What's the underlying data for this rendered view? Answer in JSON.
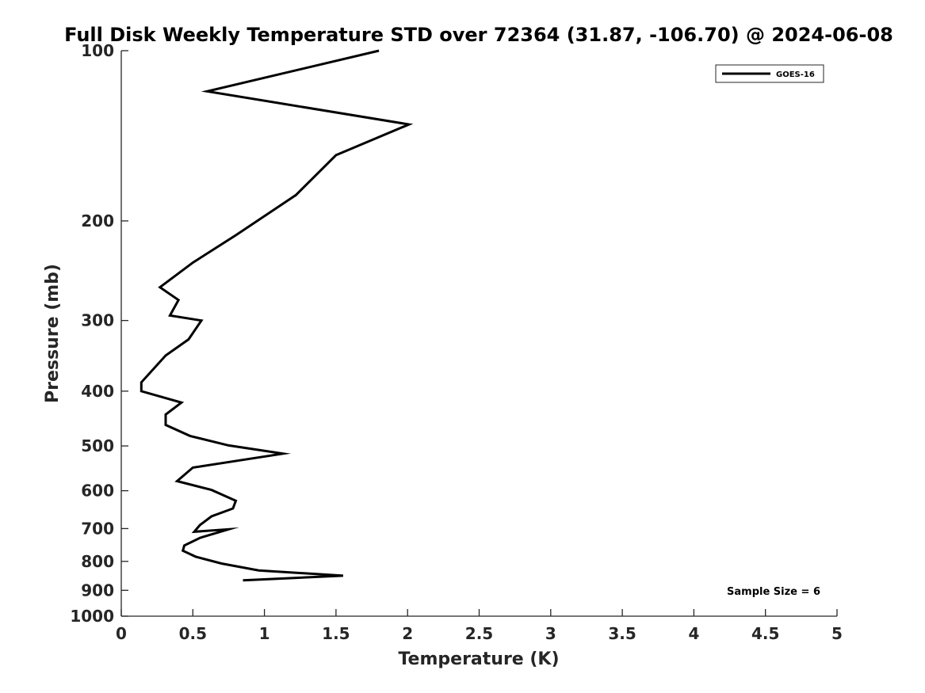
{
  "chart_data": {
    "type": "line",
    "title": "Full Disk Weekly Temperature STD over 72364 (31.87, -106.70) @ 2024-06-08",
    "xlabel": "Temperature (K)",
    "ylabel": "Pressure (mb)",
    "xlim": [
      0,
      5
    ],
    "ylim": [
      100,
      1000
    ],
    "y_scale": "log",
    "y_reversed": true,
    "x_ticks": [
      0,
      0.5,
      1,
      1.5,
      2,
      2.5,
      3,
      3.5,
      4,
      4.5,
      5
    ],
    "x_tick_labels": [
      "0",
      "0.5",
      "1",
      "1.5",
      "2",
      "2.5",
      "3",
      "3.5",
      "4",
      "4.5",
      "5"
    ],
    "y_ticks": [
      100,
      200,
      300,
      400,
      500,
      600,
      700,
      800,
      900,
      1000
    ],
    "y_tick_labels": [
      "100",
      "200",
      "300",
      "400",
      "500",
      "600",
      "700",
      "800",
      "900",
      "1000"
    ],
    "grid": false,
    "legend_position": "top-right",
    "annotation": "Sample Size = 6",
    "series": [
      {
        "name": "GOES-16",
        "color": "#000000",
        "points": [
          {
            "x": 1.8,
            "y": 100
          },
          {
            "x": 0.6,
            "y": 118
          },
          {
            "x": 2.01,
            "y": 135
          },
          {
            "x": 1.5,
            "y": 153
          },
          {
            "x": 1.22,
            "y": 180
          },
          {
            "x": 0.8,
            "y": 212
          },
          {
            "x": 0.5,
            "y": 237
          },
          {
            "x": 0.27,
            "y": 262
          },
          {
            "x": 0.4,
            "y": 276
          },
          {
            "x": 0.34,
            "y": 294
          },
          {
            "x": 0.56,
            "y": 300
          },
          {
            "x": 0.47,
            "y": 324
          },
          {
            "x": 0.31,
            "y": 346
          },
          {
            "x": 0.14,
            "y": 386
          },
          {
            "x": 0.14,
            "y": 400
          },
          {
            "x": 0.42,
            "y": 419
          },
          {
            "x": 0.31,
            "y": 440
          },
          {
            "x": 0.31,
            "y": 459
          },
          {
            "x": 0.48,
            "y": 480
          },
          {
            "x": 0.75,
            "y": 499
          },
          {
            "x": 1.13,
            "y": 516
          },
          {
            "x": 0.5,
            "y": 546
          },
          {
            "x": 0.39,
            "y": 577
          },
          {
            "x": 0.63,
            "y": 598
          },
          {
            "x": 0.8,
            "y": 625
          },
          {
            "x": 0.78,
            "y": 645
          },
          {
            "x": 0.63,
            "y": 666
          },
          {
            "x": 0.55,
            "y": 690
          },
          {
            "x": 0.51,
            "y": 709
          },
          {
            "x": 0.75,
            "y": 702
          },
          {
            "x": 0.55,
            "y": 727
          },
          {
            "x": 0.44,
            "y": 750
          },
          {
            "x": 0.43,
            "y": 766
          },
          {
            "x": 0.52,
            "y": 785
          },
          {
            "x": 0.7,
            "y": 807
          },
          {
            "x": 0.96,
            "y": 830
          },
          {
            "x": 1.55,
            "y": 848
          },
          {
            "x": 0.85,
            "y": 864
          }
        ]
      }
    ]
  }
}
